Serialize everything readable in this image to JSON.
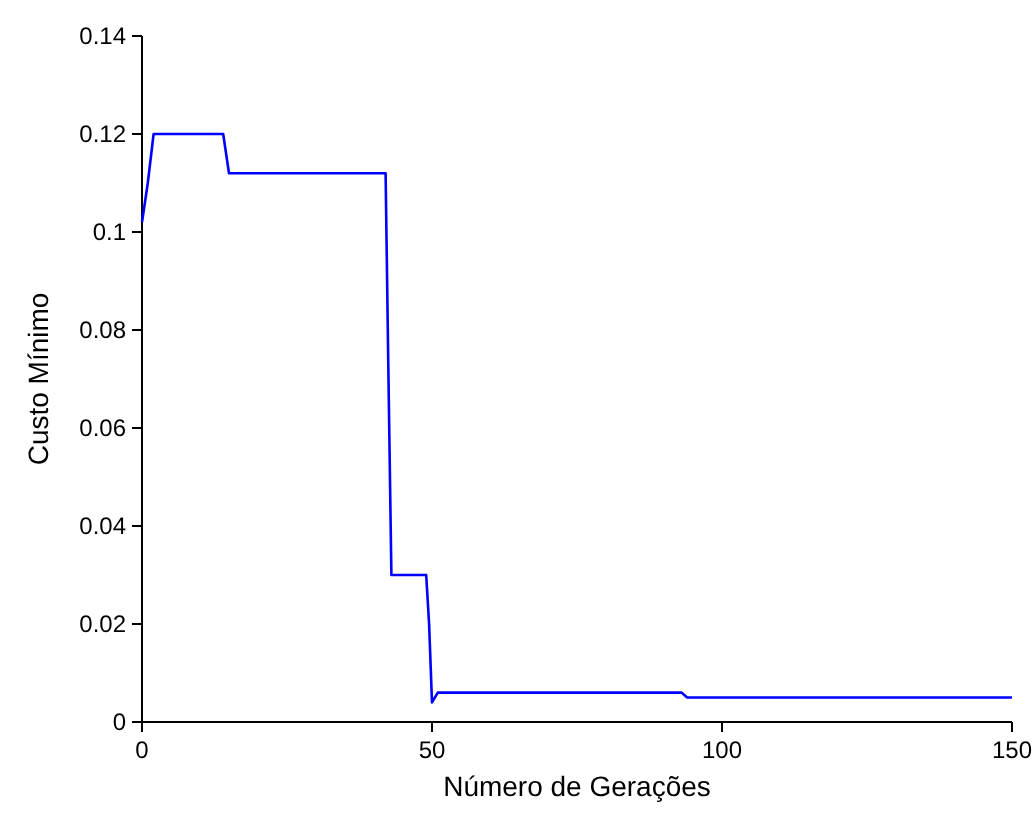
{
  "chart_data": {
    "type": "line",
    "xlabel": "Número de Gerações",
    "ylabel": "Custo Mínimo",
    "x": [
      0,
      1,
      2,
      14,
      15,
      42,
      42.5,
      43,
      49,
      49.5,
      50,
      51,
      93,
      94,
      150
    ],
    "series": [
      {
        "color": "#0000ff",
        "values": [
          0.102,
          0.11,
          0.12,
          0.12,
          0.112,
          0.112,
          0.07,
          0.03,
          0.03,
          0.02,
          0.004,
          0.006,
          0.006,
          0.005,
          0.005
        ]
      }
    ],
    "xlim": [
      0,
      150
    ],
    "xticks": [
      0,
      50,
      100,
      150
    ],
    "ylim": [
      0,
      0.14
    ],
    "yticks": [
      0,
      0.02,
      0.04,
      0.06,
      0.08,
      {
        "value": 0.1,
        "label": "0.1"
      },
      0.12,
      0.14
    ],
    "grid": false,
    "marker": "none",
    "line_style": "solid"
  }
}
